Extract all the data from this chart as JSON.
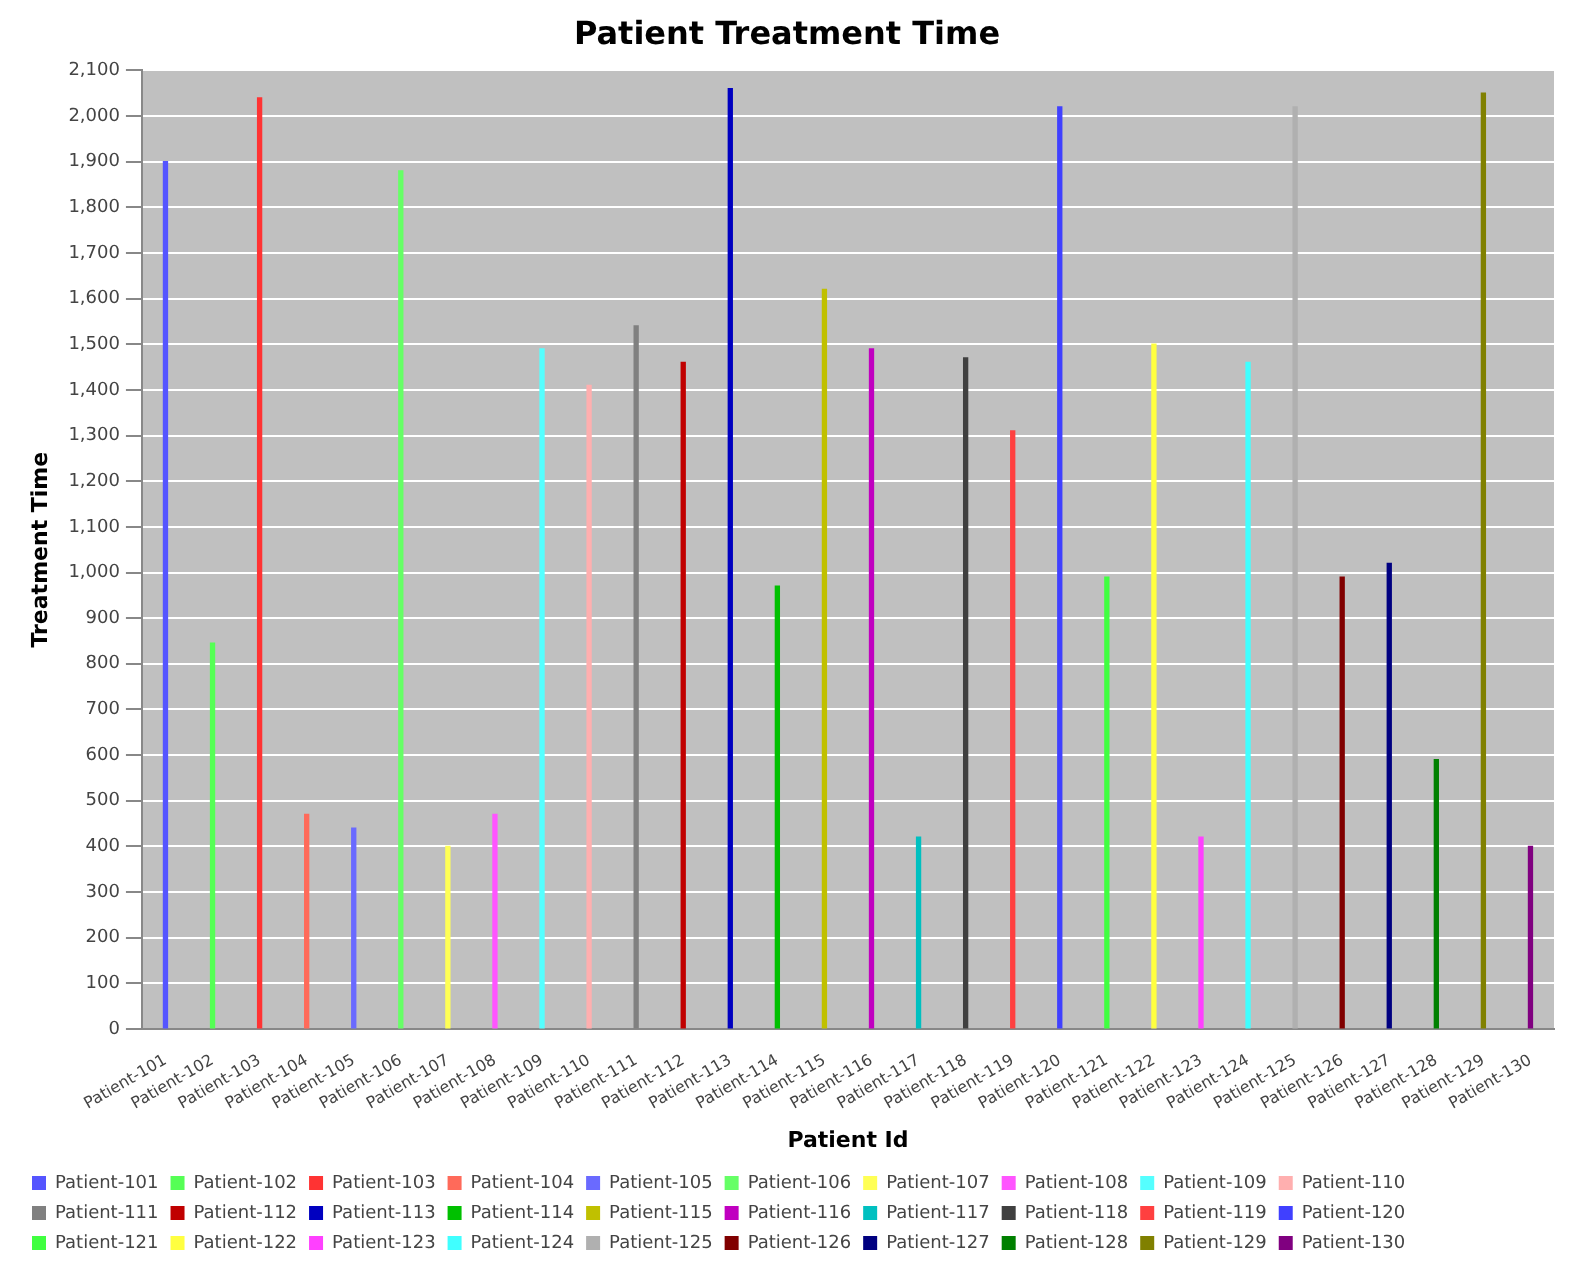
{
  "chart_data": {
    "type": "bar",
    "title": "Patient Treatment Time",
    "xlabel": "Patient Id",
    "ylabel": "Treatment Time",
    "categories": [
      "Patient-101",
      "Patient-102",
      "Patient-103",
      "Patient-104",
      "Patient-105",
      "Patient-106",
      "Patient-107",
      "Patient-108",
      "Patient-109",
      "Patient-110",
      "Patient-111",
      "Patient-112",
      "Patient-113",
      "Patient-114",
      "Patient-115",
      "Patient-116",
      "Patient-117",
      "Patient-118",
      "Patient-119",
      "Patient-120",
      "Patient-121",
      "Patient-122",
      "Patient-123",
      "Patient-124",
      "Patient-125",
      "Patient-126",
      "Patient-127",
      "Patient-128",
      "Patient-129",
      "Patient-130"
    ],
    "series": [
      {
        "name": "Patient-101",
        "color": "#5555ff",
        "values": [
          1900,
          null,
          null,
          null,
          null,
          null,
          null,
          null,
          null,
          null,
          null,
          null,
          null,
          null,
          null,
          null,
          null,
          null,
          null,
          null,
          null,
          null,
          null,
          null,
          null,
          null,
          null,
          null,
          null,
          null
        ]
      },
      {
        "name": "Patient-102",
        "color": "#55ff55",
        "values": [
          null,
          845,
          null,
          null,
          null,
          null,
          null,
          null,
          null,
          null,
          null,
          null,
          null,
          null,
          null,
          null,
          null,
          null,
          null,
          null,
          null,
          null,
          null,
          null,
          null,
          null,
          null,
          null,
          null,
          null
        ]
      },
      {
        "name": "Patient-103",
        "color": "#ff3333",
        "values": [
          null,
          null,
          2040,
          null,
          null,
          null,
          null,
          null,
          null,
          null,
          null,
          null,
          null,
          null,
          null,
          null,
          null,
          null,
          null,
          null,
          null,
          null,
          null,
          null,
          null,
          null,
          null,
          null,
          null,
          null
        ]
      },
      {
        "name": "Patient-104",
        "color": "#ff6a5a",
        "values": [
          null,
          null,
          null,
          470,
          null,
          null,
          null,
          null,
          null,
          null,
          null,
          null,
          null,
          null,
          null,
          null,
          null,
          null,
          null,
          null,
          null,
          null,
          null,
          null,
          null,
          null,
          null,
          null,
          null,
          null
        ]
      },
      {
        "name": "Patient-105",
        "color": "#6a6aff",
        "values": [
          null,
          null,
          null,
          null,
          440,
          null,
          null,
          null,
          null,
          null,
          null,
          null,
          null,
          null,
          null,
          null,
          null,
          null,
          null,
          null,
          null,
          null,
          null,
          null,
          null,
          null,
          null,
          null,
          null,
          null
        ]
      },
      {
        "name": "Patient-106",
        "color": "#66ff66",
        "values": [
          null,
          null,
          null,
          null,
          null,
          1880,
          null,
          null,
          null,
          null,
          null,
          null,
          null,
          null,
          null,
          null,
          null,
          null,
          null,
          null,
          null,
          null,
          null,
          null,
          null,
          null,
          null,
          null,
          null,
          null
        ]
      },
      {
        "name": "Patient-107",
        "color": "#ffff55",
        "values": [
          null,
          null,
          null,
          null,
          null,
          null,
          400,
          null,
          null,
          null,
          null,
          null,
          null,
          null,
          null,
          null,
          null,
          null,
          null,
          null,
          null,
          null,
          null,
          null,
          null,
          null,
          null,
          null,
          null,
          null
        ]
      },
      {
        "name": "Patient-108",
        "color": "#ff55ff",
        "values": [
          null,
          null,
          null,
          null,
          null,
          null,
          null,
          470,
          null,
          null,
          null,
          null,
          null,
          null,
          null,
          null,
          null,
          null,
          null,
          null,
          null,
          null,
          null,
          null,
          null,
          null,
          null,
          null,
          null,
          null
        ]
      },
      {
        "name": "Patient-109",
        "color": "#55ffff",
        "values": [
          null,
          null,
          null,
          null,
          null,
          null,
          null,
          null,
          1490,
          null,
          null,
          null,
          null,
          null,
          null,
          null,
          null,
          null,
          null,
          null,
          null,
          null,
          null,
          null,
          null,
          null,
          null,
          null,
          null,
          null
        ]
      },
      {
        "name": "Patient-110",
        "color": "#ffafaf",
        "values": [
          null,
          null,
          null,
          null,
          null,
          null,
          null,
          null,
          null,
          1410,
          null,
          null,
          null,
          null,
          null,
          null,
          null,
          null,
          null,
          null,
          null,
          null,
          null,
          null,
          null,
          null,
          null,
          null,
          null,
          null
        ]
      },
      {
        "name": "Patient-111",
        "color": "#808080",
        "values": [
          null,
          null,
          null,
          null,
          null,
          null,
          null,
          null,
          null,
          null,
          1540,
          null,
          null,
          null,
          null,
          null,
          null,
          null,
          null,
          null,
          null,
          null,
          null,
          null,
          null,
          null,
          null,
          null,
          null,
          null
        ]
      },
      {
        "name": "Patient-112",
        "color": "#c00000",
        "values": [
          null,
          null,
          null,
          null,
          null,
          null,
          null,
          null,
          null,
          null,
          null,
          1460,
          null,
          null,
          null,
          null,
          null,
          null,
          null,
          null,
          null,
          null,
          null,
          null,
          null,
          null,
          null,
          null,
          null,
          null
        ]
      },
      {
        "name": "Patient-113",
        "color": "#0000c0",
        "values": [
          null,
          null,
          null,
          null,
          null,
          null,
          null,
          null,
          null,
          null,
          null,
          null,
          2060,
          null,
          null,
          null,
          null,
          null,
          null,
          null,
          null,
          null,
          null,
          null,
          null,
          null,
          null,
          null,
          null,
          null
        ]
      },
      {
        "name": "Patient-114",
        "color": "#00c000",
        "values": [
          null,
          null,
          null,
          null,
          null,
          null,
          null,
          null,
          null,
          null,
          null,
          null,
          null,
          970,
          null,
          null,
          null,
          null,
          null,
          null,
          null,
          null,
          null,
          null,
          null,
          null,
          null,
          null,
          null,
          null
        ]
      },
      {
        "name": "Patient-115",
        "color": "#c0c000",
        "values": [
          null,
          null,
          null,
          null,
          null,
          null,
          null,
          null,
          null,
          null,
          null,
          null,
          null,
          null,
          1620,
          null,
          null,
          null,
          null,
          null,
          null,
          null,
          null,
          null,
          null,
          null,
          null,
          null,
          null,
          null
        ]
      },
      {
        "name": "Patient-116",
        "color": "#c000c0",
        "values": [
          null,
          null,
          null,
          null,
          null,
          null,
          null,
          null,
          null,
          null,
          null,
          null,
          null,
          null,
          null,
          1490,
          null,
          null,
          null,
          null,
          null,
          null,
          null,
          null,
          null,
          null,
          null,
          null,
          null,
          null
        ]
      },
      {
        "name": "Patient-117",
        "color": "#00c0c0",
        "values": [
          null,
          null,
          null,
          null,
          null,
          null,
          null,
          null,
          null,
          null,
          null,
          null,
          null,
          null,
          null,
          null,
          420,
          null,
          null,
          null,
          null,
          null,
          null,
          null,
          null,
          null,
          null,
          null,
          null,
          null
        ]
      },
      {
        "name": "Patient-118",
        "color": "#404040",
        "values": [
          null,
          null,
          null,
          null,
          null,
          null,
          null,
          null,
          null,
          null,
          null,
          null,
          null,
          null,
          null,
          null,
          null,
          1470,
          null,
          null,
          null,
          null,
          null,
          null,
          null,
          null,
          null,
          null,
          null,
          null
        ]
      },
      {
        "name": "Patient-119",
        "color": "#ff4040",
        "values": [
          null,
          null,
          null,
          null,
          null,
          null,
          null,
          null,
          null,
          null,
          null,
          null,
          null,
          null,
          null,
          null,
          null,
          null,
          1310,
          null,
          null,
          null,
          null,
          null,
          null,
          null,
          null,
          null,
          null,
          null
        ]
      },
      {
        "name": "Patient-120",
        "color": "#4040ff",
        "values": [
          null,
          null,
          null,
          null,
          null,
          null,
          null,
          null,
          null,
          null,
          null,
          null,
          null,
          null,
          null,
          null,
          null,
          null,
          null,
          2020,
          null,
          null,
          null,
          null,
          null,
          null,
          null,
          null,
          null,
          null
        ]
      },
      {
        "name": "Patient-121",
        "color": "#40ff40",
        "values": [
          null,
          null,
          null,
          null,
          null,
          null,
          null,
          null,
          null,
          null,
          null,
          null,
          null,
          null,
          null,
          null,
          null,
          null,
          null,
          null,
          990,
          null,
          null,
          null,
          null,
          null,
          null,
          null,
          null,
          null
        ]
      },
      {
        "name": "Patient-122",
        "color": "#ffff40",
        "values": [
          null,
          null,
          null,
          null,
          null,
          null,
          null,
          null,
          null,
          null,
          null,
          null,
          null,
          null,
          null,
          null,
          null,
          null,
          null,
          null,
          null,
          1500,
          null,
          null,
          null,
          null,
          null,
          null,
          null,
          null
        ]
      },
      {
        "name": "Patient-123",
        "color": "#ff40ff",
        "values": [
          null,
          null,
          null,
          null,
          null,
          null,
          null,
          null,
          null,
          null,
          null,
          null,
          null,
          null,
          null,
          null,
          null,
          null,
          null,
          null,
          null,
          null,
          420,
          null,
          null,
          null,
          null,
          null,
          null,
          null
        ]
      },
      {
        "name": "Patient-124",
        "color": "#40ffff",
        "values": [
          null,
          null,
          null,
          null,
          null,
          null,
          null,
          null,
          null,
          null,
          null,
          null,
          null,
          null,
          null,
          null,
          null,
          null,
          null,
          null,
          null,
          null,
          null,
          1460,
          null,
          null,
          null,
          null,
          null,
          null
        ]
      },
      {
        "name": "Patient-125",
        "color": "#b0b0b0",
        "values": [
          null,
          null,
          null,
          null,
          null,
          null,
          null,
          null,
          null,
          null,
          null,
          null,
          null,
          null,
          null,
          null,
          null,
          null,
          null,
          null,
          null,
          null,
          null,
          null,
          2020,
          null,
          null,
          null,
          null,
          null
        ]
      },
      {
        "name": "Patient-126",
        "color": "#800000",
        "values": [
          null,
          null,
          null,
          null,
          null,
          null,
          null,
          null,
          null,
          null,
          null,
          null,
          null,
          null,
          null,
          null,
          null,
          null,
          null,
          null,
          null,
          null,
          null,
          null,
          null,
          990,
          null,
          null,
          null,
          null
        ]
      },
      {
        "name": "Patient-127",
        "color": "#000080",
        "values": [
          null,
          null,
          null,
          null,
          null,
          null,
          null,
          null,
          null,
          null,
          null,
          null,
          null,
          null,
          null,
          null,
          null,
          null,
          null,
          null,
          null,
          null,
          null,
          null,
          null,
          null,
          1020,
          null,
          null,
          null
        ]
      },
      {
        "name": "Patient-128",
        "color": "#008000",
        "values": [
          null,
          null,
          null,
          null,
          null,
          null,
          null,
          null,
          null,
          null,
          null,
          null,
          null,
          null,
          null,
          null,
          null,
          null,
          null,
          null,
          null,
          null,
          null,
          null,
          null,
          null,
          null,
          590,
          null,
          null
        ]
      },
      {
        "name": "Patient-129",
        "color": "#808000",
        "values": [
          null,
          null,
          null,
          null,
          null,
          null,
          null,
          null,
          null,
          null,
          null,
          null,
          null,
          null,
          null,
          null,
          null,
          null,
          null,
          null,
          null,
          null,
          null,
          null,
          null,
          null,
          null,
          null,
          2050,
          null
        ]
      },
      {
        "name": "Patient-130",
        "color": "#800080",
        "values": [
          null,
          null,
          null,
          null,
          null,
          null,
          null,
          null,
          null,
          null,
          null,
          null,
          null,
          null,
          null,
          null,
          null,
          null,
          null,
          null,
          null,
          null,
          null,
          null,
          null,
          null,
          null,
          null,
          null,
          400
        ]
      }
    ],
    "ylim": [
      0,
      2100
    ],
    "yticks": [
      0,
      100,
      200,
      300,
      400,
      500,
      600,
      700,
      800,
      900,
      {
        "value": 1000,
        "label": "1,000"
      },
      {
        "value": 1100,
        "label": "1,100"
      },
      {
        "value": 1200,
        "label": "1,200"
      },
      {
        "value": 1300,
        "label": "1,300"
      },
      {
        "value": 1400,
        "label": "1,400"
      },
      {
        "value": 1500,
        "label": "1,500"
      },
      {
        "value": 1600,
        "label": "1,600"
      },
      {
        "value": 1700,
        "label": "1,700"
      },
      {
        "value": 1800,
        "label": "1,800"
      },
      {
        "value": 1900,
        "label": "1,900"
      },
      {
        "value": 2000,
        "label": "2,000"
      },
      {
        "value": 2100,
        "label": "2,100"
      }
    ],
    "grid": "y",
    "legend": "bottom"
  }
}
